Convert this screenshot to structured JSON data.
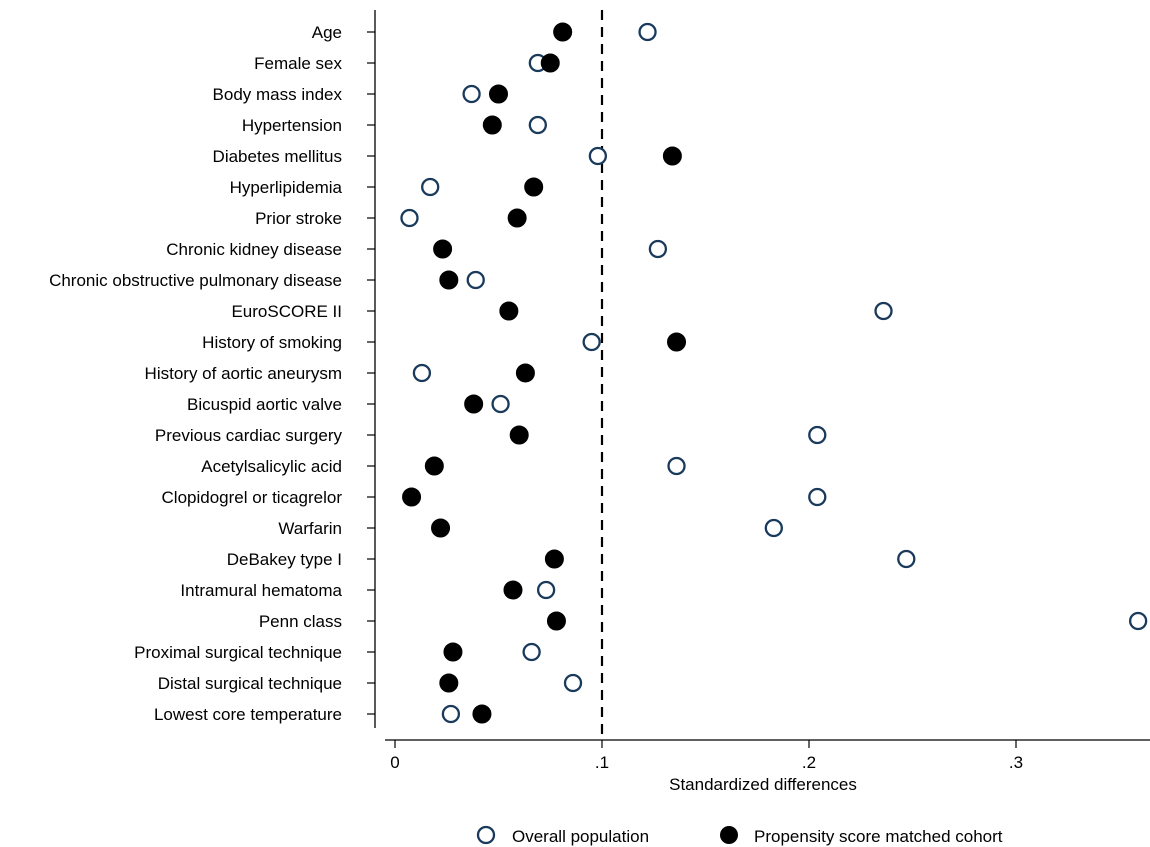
{
  "chart_data": {
    "type": "scatter",
    "title": "",
    "xlabel": "Standardized differences",
    "ylabel": "",
    "xlim": [
      -0.008,
      0.36
    ],
    "xticks": [
      0,
      0.1,
      0.2,
      0.3
    ],
    "xtick_labels": [
      "0",
      ".1",
      ".2",
      ".3"
    ],
    "reference_line": 0.1,
    "grid": false,
    "legend_position": "bottom-center",
    "categories": [
      "Age",
      "Female sex",
      "Body mass index",
      "Hypertension",
      "Diabetes mellitus",
      "Hyperlipidemia",
      "Prior stroke",
      "Chronic kidney disease",
      "Chronic obstructive pulmonary disease",
      "EuroSCORE II",
      "History of smoking",
      "History of aortic aneurysm",
      "Bicuspid aortic valve",
      "Previous cardiac surgery",
      "Acetylsalicylic acid",
      "Clopidogrel or ticagrelor",
      "Warfarin",
      "DeBakey type I",
      "Intramural hematoma",
      "Penn class",
      "Proximal surgical technique",
      "Distal surgical technique",
      "Lowest core temperature"
    ],
    "series": [
      {
        "name": "Overall population",
        "marker": "hollow-circle",
        "color": "#1a3a5c",
        "values": [
          0.122,
          0.069,
          0.037,
          0.069,
          0.098,
          0.017,
          0.007,
          0.127,
          0.039,
          0.236,
          0.095,
          0.013,
          0.051,
          0.204,
          0.136,
          0.204,
          0.183,
          0.247,
          0.073,
          0.359,
          0.066,
          0.086,
          0.027
        ]
      },
      {
        "name": "Propensity score matched cohort",
        "marker": "filled-circle",
        "color": "#000000",
        "values": [
          0.081,
          0.075,
          0.05,
          0.047,
          0.134,
          0.067,
          0.059,
          0.023,
          0.026,
          0.055,
          0.136,
          0.063,
          0.038,
          0.06,
          0.019,
          0.008,
          0.022,
          0.077,
          0.057,
          0.078,
          0.028,
          0.026,
          0.042
        ]
      }
    ]
  }
}
